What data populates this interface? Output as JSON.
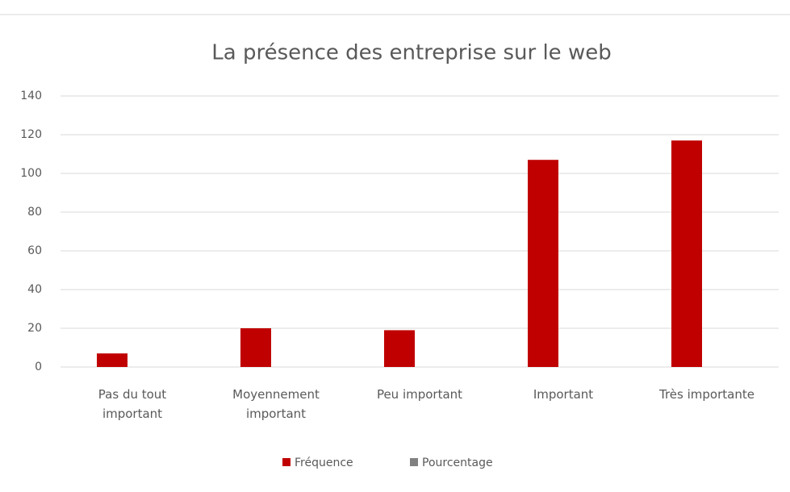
{
  "chart_data": {
    "type": "bar",
    "title": "La présence des entreprise sur le web",
    "categories": [
      "Pas du tout important",
      "Moyennement important",
      "Peu important",
      "Important",
      "Très importante"
    ],
    "series": [
      {
        "name": "Fréquence",
        "color": "#c00000",
        "values": [
          7,
          20,
          19,
          107,
          117
        ]
      },
      {
        "name": "Pourcentage",
        "color": "#808080",
        "values": [
          0,
          0,
          0,
          0,
          0
        ]
      }
    ],
    "ylim": [
      0,
      140
    ],
    "yticks": [
      0,
      20,
      40,
      60,
      80,
      100,
      120,
      140
    ],
    "grid": true,
    "legend": "bottom"
  }
}
